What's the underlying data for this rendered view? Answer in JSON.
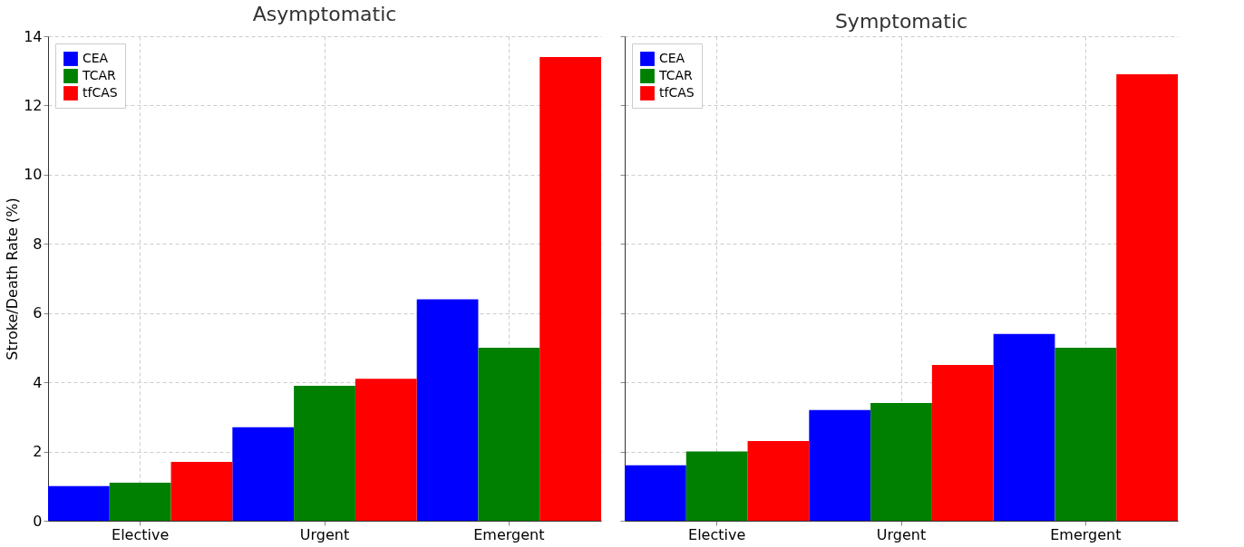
{
  "chart_data": [
    {
      "type": "bar",
      "title": "Asymptomatic",
      "ylabel": "Stroke/Death Rate (%)",
      "categories": [
        "Elective",
        "Urgent",
        "Emergent"
      ],
      "series": [
        {
          "name": "CEA",
          "color": "#0000ff",
          "values": [
            1.0,
            2.7,
            6.4
          ]
        },
        {
          "name": "TCAR",
          "color": "#008000",
          "values": [
            1.1,
            3.9,
            5.0
          ]
        },
        {
          "name": "tfCAS",
          "color": "#ff0000",
          "values": [
            1.7,
            4.1,
            13.4
          ]
        }
      ],
      "ylim": [
        0,
        14
      ],
      "yticks": [
        0,
        2,
        4,
        6,
        8,
        10,
        12,
        14
      ],
      "grid": true,
      "legend": "top left"
    },
    {
      "type": "bar",
      "title": "Symptomatic",
      "categories": [
        "Elective",
        "Urgent",
        "Emergent"
      ],
      "series": [
        {
          "name": "CEA",
          "color": "#0000ff",
          "values": [
            1.6,
            3.2,
            5.4
          ]
        },
        {
          "name": "TCAR",
          "color": "#008000",
          "values": [
            2.0,
            3.4,
            5.0
          ]
        },
        {
          "name": "tfCAS",
          "color": "#ff0000",
          "values": [
            2.3,
            4.5,
            12.9
          ]
        }
      ],
      "ylim": [
        0,
        14
      ],
      "yticks": [
        0,
        2,
        4,
        6,
        8,
        10,
        12,
        14
      ],
      "grid": true,
      "legend": "top left",
      "tick_labels": "x"
    }
  ]
}
